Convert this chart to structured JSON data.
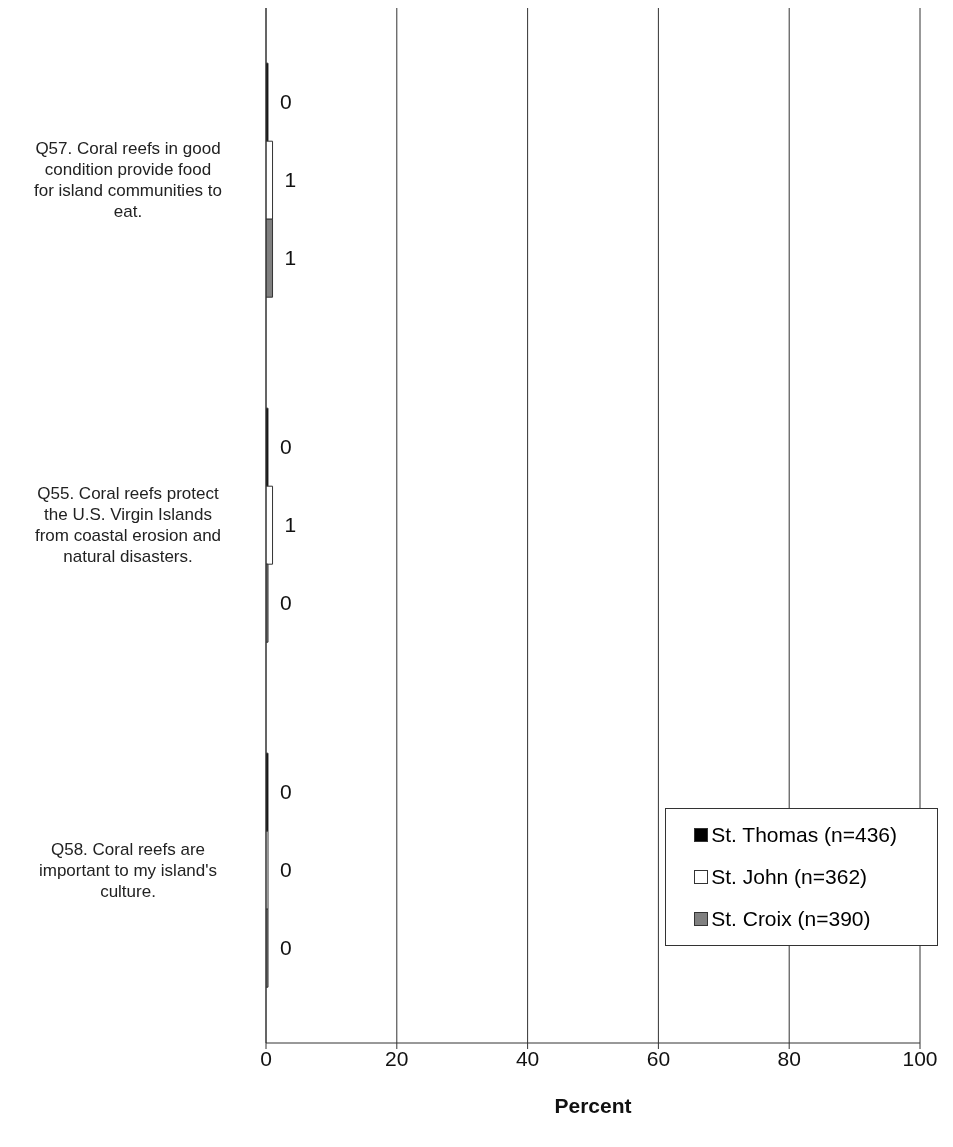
{
  "chart_data": {
    "type": "bar",
    "orientation": "horizontal",
    "xlabel": "Percent",
    "categories": [
      "Q57. Coral reefs in good condition provide food for island communities to eat.",
      "Q55. Coral reefs protect the U.S. Virgin Islands from coastal erosion and natural disasters.",
      "Q58. Coral reefs are important to my island's culture."
    ],
    "series": [
      {
        "name": "St. Thomas (n=436)",
        "color": "#000000",
        "values": [
          0,
          0,
          0
        ]
      },
      {
        "name": "St. John (n=362)",
        "color": "#ffffff",
        "values": [
          1,
          1,
          0
        ]
      },
      {
        "name": "St. Croix (n=390)",
        "color": "#808080",
        "values": [
          1,
          0,
          0
        ]
      }
    ],
    "xlim": [
      0,
      100
    ],
    "xticks": [
      0,
      20,
      40,
      60,
      80,
      100
    ],
    "grid": "x",
    "legend": "bottom right",
    "data_labels": true
  }
}
